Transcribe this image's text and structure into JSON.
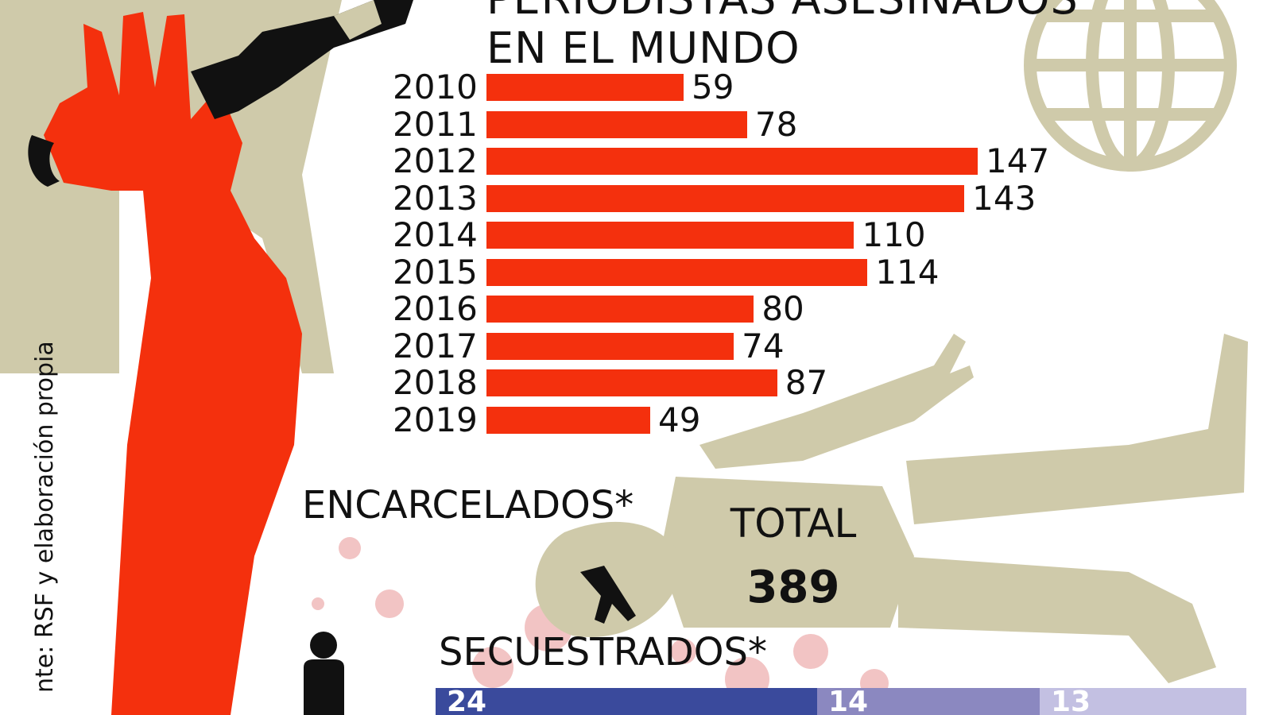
{
  "title_lines": [
    "PERIODISTAS ASESINADOS",
    "EN EL MUNDO"
  ],
  "source_note": "nte: RSF y elaboración propia",
  "encarcelados_label": "ENCARCELADOS*",
  "total_label": "TOTAL",
  "total_value": "389",
  "secuestrados_label": "SECUESTRADOS*",
  "secuestrados_segments": [
    {
      "value": "24",
      "color": "#3a4a9c"
    },
    {
      "value": "14",
      "color": "#8b88c0"
    },
    {
      "value": "13",
      "color": "#c3c0e2"
    }
  ],
  "colors": {
    "bar": "#f4300d",
    "figure_red": "#f4300d",
    "beige": "#cfcaaa",
    "black": "#111111",
    "blood": "#f2c4c4"
  },
  "icons": [
    "globe-icon",
    "person-icon",
    "hand-with-microphone-illustration",
    "fallen-body-illustration"
  ],
  "chart_data": {
    "type": "bar",
    "orientation": "horizontal",
    "title": "PERIODISTAS ASESINADOS EN EL MUNDO",
    "categories": [
      "2010",
      "2011",
      "2012",
      "2013",
      "2014",
      "2015",
      "2016",
      "2017",
      "2018",
      "2019"
    ],
    "values": [
      59,
      78,
      147,
      143,
      110,
      114,
      80,
      74,
      87,
      49
    ],
    "data_labels": [
      "59",
      "78",
      "147",
      "143",
      "110",
      "114",
      "80",
      "74",
      "87",
      "49"
    ],
    "xlim": [
      0,
      147
    ],
    "grid": false,
    "legend": "none"
  }
}
